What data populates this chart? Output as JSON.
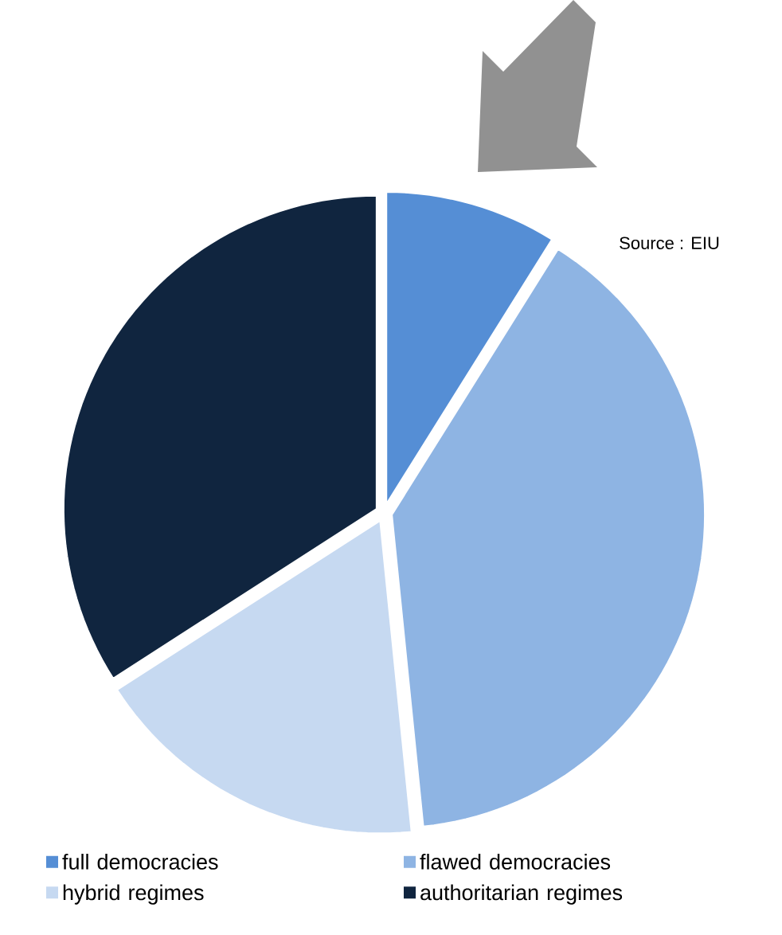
{
  "chart_data": {
    "type": "pie",
    "categories": [
      "full democracies",
      "flawed democracies",
      "hybrid regimes",
      "authoritarian regimes"
    ],
    "values": [
      8.9,
      39.5,
      17.5,
      34.1
    ],
    "colors": [
      "#558ed5",
      "#8eb4e3",
      "#c6d9f1",
      "#10253f"
    ],
    "legend": "bottom",
    "annotations": [
      "Source : EIU"
    ]
  }
}
